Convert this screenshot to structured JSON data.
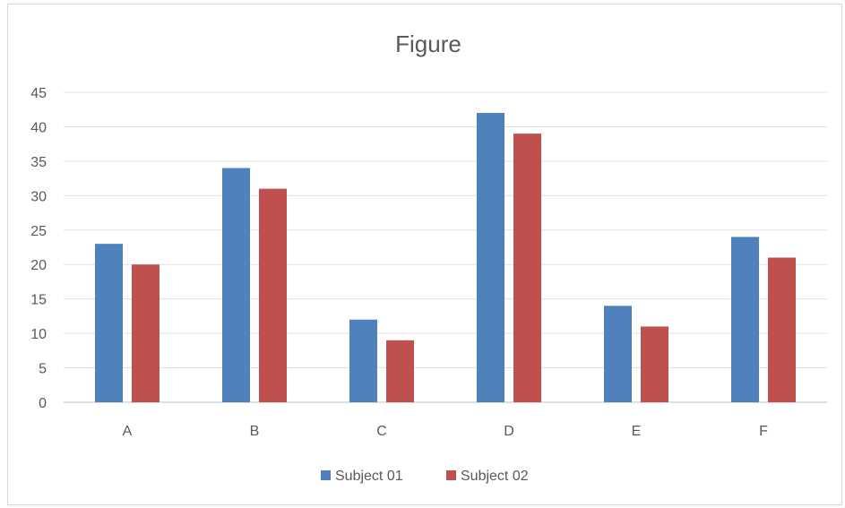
{
  "chart_data": {
    "type": "bar",
    "title": "Figure",
    "xlabel": "",
    "ylabel": "",
    "categories": [
      "A",
      "B",
      "C",
      "D",
      "E",
      "F"
    ],
    "series": [
      {
        "name": "Subject 01",
        "values": [
          23,
          34,
          12,
          42,
          14,
          24
        ],
        "color": "#4f81bd"
      },
      {
        "name": "Subject 02",
        "values": [
          20,
          31,
          9,
          39,
          11,
          21
        ],
        "color": "#c0504d"
      }
    ],
    "ylim": [
      0,
      45
    ],
    "yticks": [
      0,
      5,
      10,
      15,
      20,
      25,
      30,
      35,
      40,
      45
    ],
    "grid": true,
    "legend_position": "bottom"
  }
}
